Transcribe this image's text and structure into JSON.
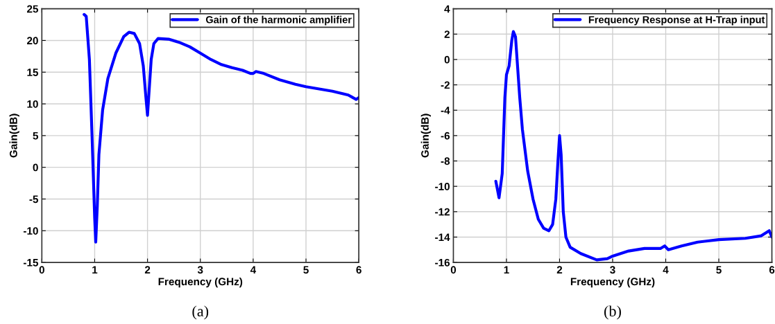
{
  "chart_data": [
    {
      "type": "line",
      "xlabel": "Frequency (GHz)",
      "ylabel": "Gain(dB)",
      "annotations": [
        "(a)"
      ],
      "xlim": [
        0,
        6
      ],
      "ylim": [
        -15,
        25
      ],
      "xticks": [
        0,
        1,
        2,
        3,
        4,
        5,
        6
      ],
      "yticks": [
        -15,
        -10,
        -5,
        0,
        5,
        10,
        15,
        20,
        25
      ],
      "grid": true,
      "legend": "top right",
      "series": [
        {
          "name": "Gain of the harmonic amplifier",
          "color": "#0000ff",
          "x": [
            0.8,
            0.84,
            0.9,
            0.95,
            1.0,
            1.02,
            1.05,
            1.08,
            1.15,
            1.25,
            1.4,
            1.55,
            1.65,
            1.75,
            1.85,
            1.92,
            1.97,
            2.0,
            2.03,
            2.07,
            2.12,
            2.2,
            2.4,
            2.6,
            2.8,
            3.0,
            3.2,
            3.4,
            3.6,
            3.8,
            3.95,
            4.0,
            4.05,
            4.2,
            4.5,
            4.8,
            5.0,
            5.5,
            5.8,
            5.95,
            6.0
          ],
          "values": [
            24.1,
            23.8,
            17,
            5,
            -8,
            -11.8,
            -6,
            2,
            9,
            14,
            18,
            20.6,
            21.3,
            21.1,
            19.5,
            16,
            11,
            8.2,
            12,
            17,
            19.5,
            20.3,
            20.2,
            19.7,
            19,
            18,
            17,
            16.2,
            15.7,
            15.3,
            14.8,
            14.8,
            15.1,
            14.8,
            13.8,
            13.1,
            12.7,
            12,
            11.4,
            10.7,
            11
          ]
        }
      ]
    },
    {
      "type": "line",
      "xlabel": "Frequency (GHz)",
      "ylabel": "Gain(dB)",
      "annotations": [
        "(b)"
      ],
      "xlim": [
        0,
        6
      ],
      "ylim": [
        -16,
        4
      ],
      "xticks": [
        0,
        1,
        2,
        3,
        4,
        5,
        6
      ],
      "yticks": [
        -16,
        -14,
        -12,
        -10,
        -8,
        -6,
        -4,
        -2,
        0,
        2,
        4
      ],
      "grid": true,
      "legend": "top right",
      "series": [
        {
          "name": "Frequency Response at H-Trap input",
          "color": "#0000ff",
          "x": [
            0.8,
            0.86,
            0.92,
            0.97,
            1.0,
            1.05,
            1.1,
            1.13,
            1.17,
            1.2,
            1.25,
            1.3,
            1.4,
            1.5,
            1.6,
            1.7,
            1.8,
            1.87,
            1.93,
            1.97,
            2.0,
            2.03,
            2.07,
            2.12,
            2.2,
            2.4,
            2.7,
            2.9,
            3.0,
            3.3,
            3.6,
            3.9,
            3.98,
            4.05,
            4.3,
            4.6,
            5.0,
            5.5,
            5.8,
            5.95,
            6.0
          ],
          "values": [
            -9.6,
            -10.9,
            -9,
            -3,
            -1.2,
            -0.5,
            1.5,
            2.2,
            1.8,
            0,
            -3,
            -5.5,
            -8.8,
            -11,
            -12.6,
            -13.3,
            -13.5,
            -13,
            -11,
            -8,
            -6,
            -7.5,
            -12,
            -14,
            -14.8,
            -15.3,
            -15.8,
            -15.7,
            -15.5,
            -15.1,
            -14.9,
            -14.9,
            -14.7,
            -15,
            -14.7,
            -14.4,
            -14.2,
            -14.1,
            -13.9,
            -13.5,
            -14
          ]
        }
      ]
    }
  ]
}
